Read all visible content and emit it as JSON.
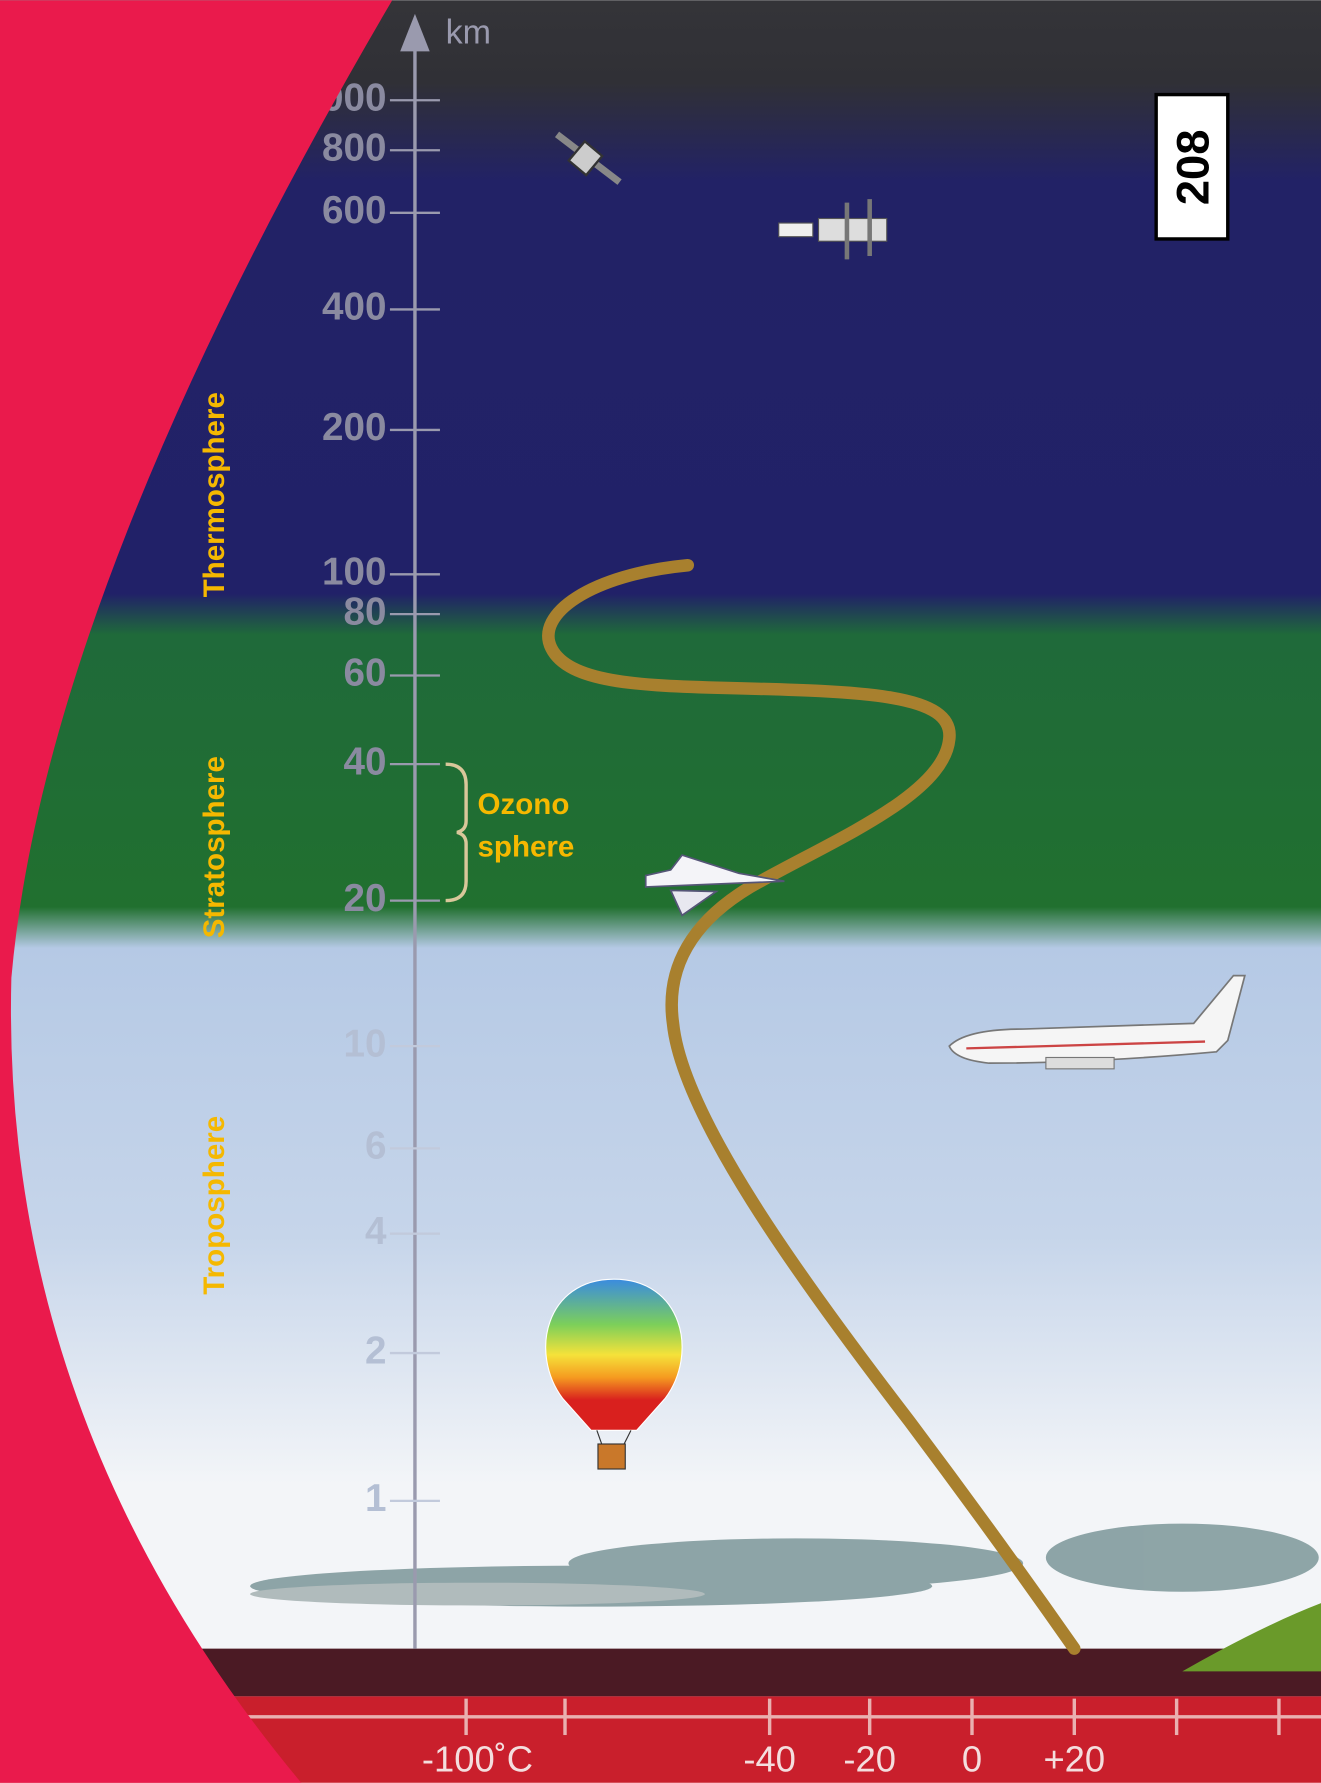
{
  "page_number": "208",
  "altitude_axis": {
    "unit": "km",
    "ticks": [
      "1000",
      "800",
      "600",
      "400",
      "200",
      "100",
      "80",
      "60",
      "40",
      "20",
      "10",
      "6",
      "4",
      "2",
      "1"
    ]
  },
  "temperature_axis": {
    "ticks": [
      "-100˚C",
      "-40",
      "-20",
      "0",
      "+20"
    ]
  },
  "layers": [
    "Thermosphere",
    "Stratosphere",
    "Troposphere"
  ],
  "ozone_label": [
    "Ozono",
    "sphere"
  ]
}
